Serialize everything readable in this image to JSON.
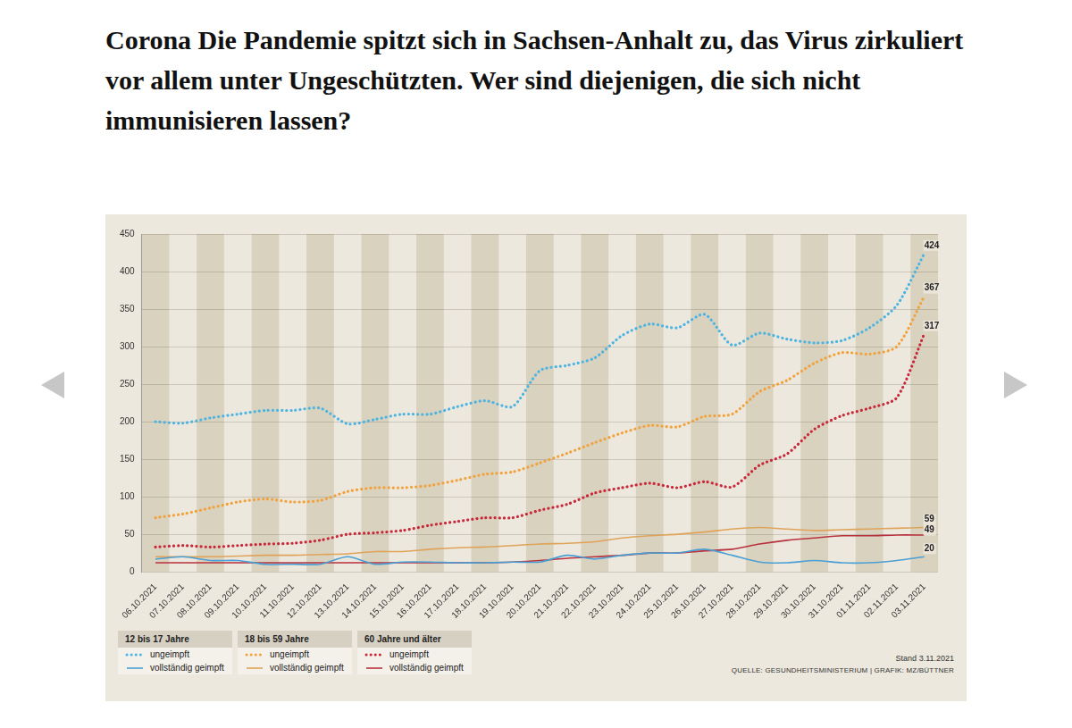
{
  "chart_data": {
    "type": "line",
    "title": "Corona Die Pandemie spitzt sich in Sachsen-Anhalt zu, das Virus zirkuliert vor allem unter Ungeschützten. Wer sind diejenigen, die sich nicht immunisieren lassen?",
    "categories": [
      "06.10.2021",
      "07.10.2021",
      "08.10.2021",
      "09.10.2021",
      "10.10.2021",
      "11.10.2021",
      "12.10.2021",
      "13.10.2021",
      "14.10.2021",
      "15.10.2021",
      "16.10.2021",
      "17.10.2021",
      "18.10.2021",
      "19.10.2021",
      "20.10.2021",
      "21.10.2021",
      "22.10.2021",
      "23.10.2021",
      "24.10.2021",
      "25.10.2021",
      "26.10.2021",
      "27.10.2021",
      "28.10.2021",
      "29.10.2021",
      "30.10.2021",
      "31.10.2021",
      "01.11.2021",
      "02.11.2021",
      "03.11.2021"
    ],
    "ylim": [
      0,
      450
    ],
    "yticks": [
      0,
      50,
      100,
      150,
      200,
      250,
      300,
      350,
      400,
      450
    ],
    "grid": true,
    "legend": "bottom",
    "series": [
      {
        "name": "ungeimpft",
        "group": "12 bis 17 Jahre",
        "color": "#4db4e2",
        "line_style": "dotted",
        "values": [
          200,
          198,
          205,
          210,
          215,
          215,
          218,
          197,
          203,
          210,
          210,
          220,
          228,
          220,
          268,
          275,
          285,
          315,
          330,
          325,
          343,
          302,
          318,
          310,
          305,
          308,
          325,
          355,
          424
        ],
        "value_labels": [
          null,
          null,
          null,
          null,
          null,
          null,
          null,
          null,
          null,
          null,
          null,
          null,
          null,
          null,
          null,
          null,
          null,
          null,
          null,
          null,
          null,
          null,
          null,
          null,
          null,
          null,
          null,
          null,
          "424"
        ]
      },
      {
        "name": "vollständig geimpft",
        "group": "12 bis 17 Jahre",
        "color": "#4a9fd4",
        "line_style": "solid",
        "values": [
          17,
          20,
          15,
          15,
          10,
          10,
          10,
          20,
          10,
          13,
          13,
          12,
          12,
          13,
          13,
          22,
          17,
          22,
          25,
          25,
          30,
          22,
          13,
          12,
          15,
          12,
          12,
          15,
          20
        ],
        "value_labels": [
          null,
          null,
          null,
          null,
          null,
          null,
          null,
          null,
          null,
          null,
          null,
          null,
          null,
          null,
          null,
          null,
          null,
          null,
          null,
          null,
          null,
          null,
          null,
          null,
          null,
          null,
          null,
          null,
          "20"
        ]
      },
      {
        "name": "ungeimpft",
        "group": "18 bis 59 Jahre",
        "color": "#f2a23c",
        "line_style": "dotted",
        "values": [
          72,
          77,
          85,
          93,
          97,
          93,
          95,
          107,
          112,
          112,
          115,
          122,
          130,
          133,
          145,
          158,
          172,
          185,
          195,
          193,
          207,
          210,
          240,
          255,
          278,
          292,
          290,
          300,
          367
        ],
        "value_labels": [
          null,
          null,
          null,
          null,
          null,
          null,
          null,
          null,
          null,
          null,
          null,
          null,
          null,
          null,
          null,
          null,
          null,
          null,
          null,
          null,
          null,
          null,
          null,
          null,
          null,
          null,
          null,
          null,
          "367"
        ]
      },
      {
        "name": "vollständig geimpft",
        "group": "18 bis 59 Jahre",
        "color": "#dfa35a",
        "line_style": "solid",
        "values": [
          20,
          20,
          20,
          21,
          22,
          22,
          23,
          24,
          27,
          27,
          30,
          32,
          33,
          35,
          37,
          38,
          40,
          45,
          48,
          50,
          53,
          57,
          59,
          57,
          55,
          56,
          57,
          58,
          59
        ],
        "value_labels": [
          null,
          null,
          null,
          null,
          null,
          null,
          null,
          null,
          null,
          null,
          null,
          null,
          null,
          null,
          null,
          null,
          null,
          null,
          null,
          null,
          null,
          null,
          null,
          null,
          null,
          null,
          null,
          null,
          "59"
        ]
      },
      {
        "name": "ungeimpft",
        "group": "60 Jahre und älter",
        "color": "#c8283a",
        "line_style": "dotted",
        "values": [
          33,
          35,
          33,
          35,
          37,
          38,
          42,
          50,
          52,
          55,
          62,
          67,
          72,
          72,
          82,
          90,
          105,
          112,
          118,
          112,
          120,
          113,
          142,
          157,
          190,
          208,
          218,
          232,
          317
        ],
        "value_labels": [
          null,
          null,
          null,
          null,
          null,
          null,
          null,
          null,
          null,
          null,
          null,
          null,
          null,
          null,
          null,
          null,
          null,
          null,
          null,
          null,
          null,
          null,
          null,
          null,
          null,
          null,
          null,
          null,
          "317"
        ]
      },
      {
        "name": "vollständig geimpft",
        "group": "60 Jahre und älter",
        "color": "#b8323e",
        "line_style": "solid",
        "values": [
          12,
          12,
          12,
          12,
          12,
          12,
          12,
          12,
          12,
          12,
          12,
          12,
          12,
          13,
          15,
          18,
          20,
          22,
          25,
          25,
          28,
          30,
          37,
          42,
          45,
          48,
          48,
          49,
          49
        ],
        "value_labels": [
          null,
          null,
          null,
          null,
          null,
          null,
          null,
          null,
          null,
          null,
          null,
          null,
          null,
          null,
          null,
          null,
          null,
          null,
          null,
          null,
          null,
          null,
          null,
          null,
          null,
          null,
          null,
          null,
          "49"
        ]
      }
    ],
    "annotations": [
      "Stand 3.11.2021",
      "QUELLE: GESUNDHEITSMINISTERIUM | GRAFIK: MZ/BÜTTNER"
    ]
  }
}
